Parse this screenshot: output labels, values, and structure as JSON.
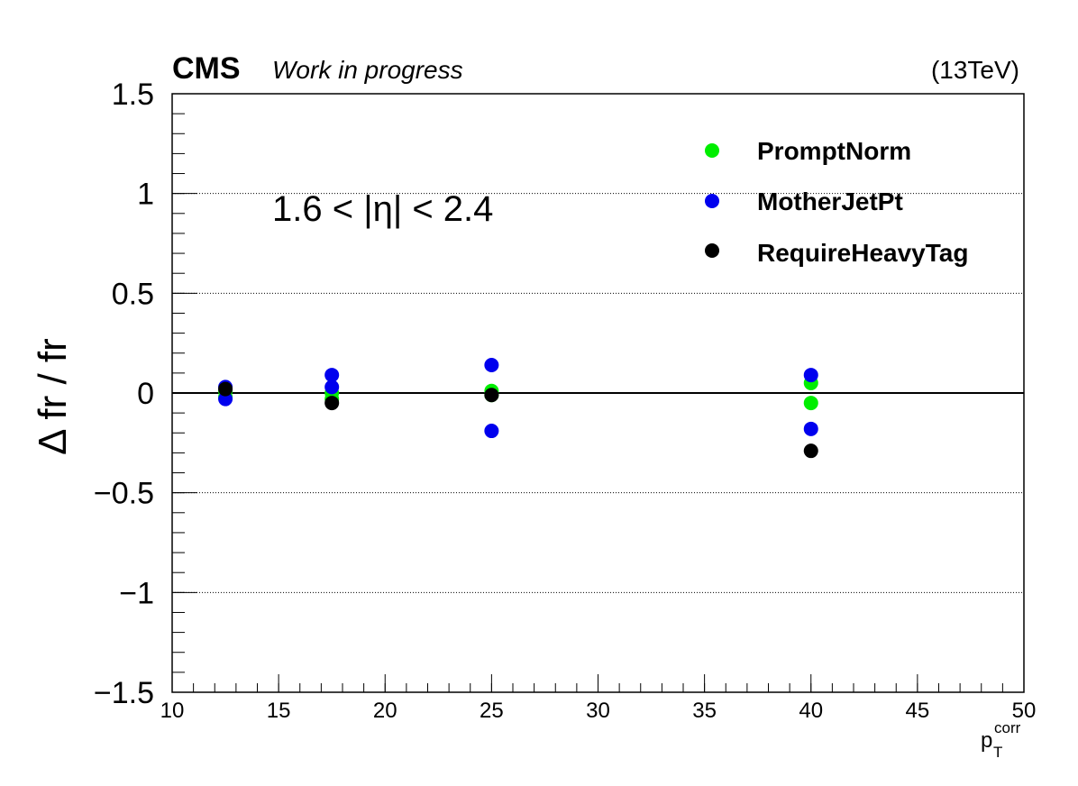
{
  "header": {
    "experiment": "CMS",
    "status": "Work in progress",
    "energy": "(13TeV)"
  },
  "annotation": "1.6 < |η| < 2.4",
  "chart_data": {
    "type": "scatter",
    "xlabel": {
      "main": "p",
      "sub": "T",
      "sup": "corr"
    },
    "ylabel": "Δ fr / fr",
    "xlim": [
      10,
      50
    ],
    "ylim": [
      -1.5,
      1.5
    ],
    "x_ticks": [
      "10",
      "15",
      "20",
      "25",
      "30",
      "35",
      "40",
      "45",
      "50"
    ],
    "y_ticks": [
      "−1.5",
      "−1",
      "−0.5",
      "0",
      "0.5",
      "1",
      "1.5"
    ],
    "y_grid": true,
    "reference_line_y": 0,
    "legend_position": "top-right",
    "series": [
      {
        "name": "PromptNorm",
        "color": "#00ee00",
        "points": [
          {
            "x": 12.5,
            "y": 0.01
          },
          {
            "x": 12.5,
            "y": -0.02
          },
          {
            "x": 17.5,
            "y": 0.0
          },
          {
            "x": 17.5,
            "y": -0.03
          },
          {
            "x": 25,
            "y": 0.01
          },
          {
            "x": 25,
            "y": -0.01
          },
          {
            "x": 40,
            "y": 0.05
          },
          {
            "x": 40,
            "y": -0.05
          }
        ]
      },
      {
        "name": "MotherJetPt",
        "color": "#0000ee",
        "points": [
          {
            "x": 12.5,
            "y": 0.03
          },
          {
            "x": 12.5,
            "y": -0.03
          },
          {
            "x": 17.5,
            "y": 0.09
          },
          {
            "x": 17.5,
            "y": 0.03
          },
          {
            "x": 25,
            "y": 0.14
          },
          {
            "x": 25,
            "y": -0.19
          },
          {
            "x": 40,
            "y": 0.09
          },
          {
            "x": 40,
            "y": -0.18
          }
        ]
      },
      {
        "name": "RequireHeavyTag",
        "color": "#000000",
        "points": [
          {
            "x": 12.5,
            "y": 0.02
          },
          {
            "x": 17.5,
            "y": -0.05
          },
          {
            "x": 25,
            "y": -0.01
          },
          {
            "x": 40,
            "y": -0.29
          }
        ]
      }
    ]
  }
}
